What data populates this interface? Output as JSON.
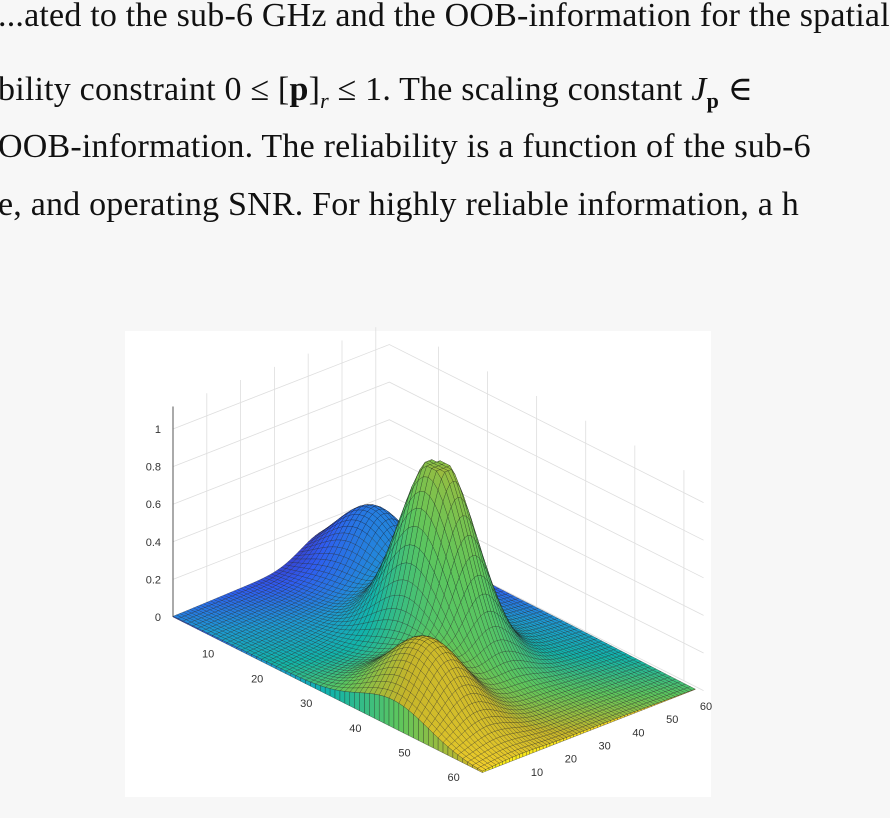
{
  "paper_text": {
    "line0_partial": "...ated to the sub-6 GHz and the OOB-information for the spatial",
    "line1": "bility constraint 0 ≤ [p]r ≤ 1. The scaling constant Jp ∈",
    "line2": "OOB-information. The reliability is a function of the sub-6",
    "line3": "e, and operating SNR. For highly reliable information, a h"
  },
  "figure": {
    "chart_data": {
      "type": "surface3d",
      "description_values": {
        "x_range": [
          1,
          64
        ],
        "y_range": [
          1,
          64
        ],
        "z_range": [
          0,
          1
        ],
        "peaks": [
          {
            "x": 32,
            "y": 32,
            "z": 1.0
          },
          {
            "x": 10,
            "y": 45,
            "z": 0.38
          },
          {
            "x": 45,
            "y": 10,
            "z": 0.38
          }
        ]
      },
      "z_ticks": [
        "0",
        "0.2",
        "0.4",
        "0.6",
        "0.8",
        "1"
      ],
      "x_ticks": [
        "10",
        "20",
        "30",
        "40",
        "50",
        "60"
      ],
      "y_ticks": [
        "10",
        "20",
        "30",
        "40",
        "50",
        "60"
      ],
      "colormap": [
        "#3e26a8",
        "#2f5cf0",
        "#1e98d3",
        "#12b4a9",
        "#5ec65c",
        "#c5b52a",
        "#f9d32a",
        "#f9fb0e"
      ]
    }
  }
}
